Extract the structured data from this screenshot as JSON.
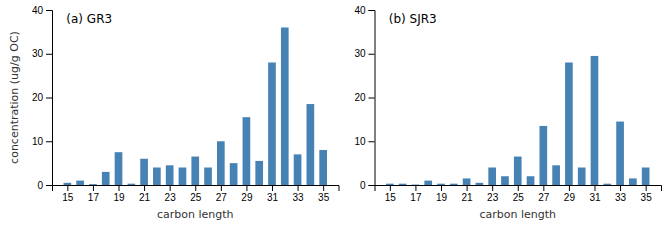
{
  "chart_data": [
    {
      "type": "bar",
      "title": "(a) GR3",
      "xlabel": "carbon length",
      "ylabel": "concentration (ug/g OC)",
      "x": [
        15,
        16,
        17,
        18,
        19,
        20,
        21,
        22,
        23,
        24,
        25,
        26,
        27,
        28,
        29,
        30,
        31,
        32,
        33,
        34,
        35
      ],
      "values": [
        0.5,
        1.0,
        0.2,
        3.0,
        7.5,
        0.3,
        6.0,
        4.0,
        4.5,
        4.0,
        6.5,
        4.0,
        10.0,
        5.0,
        15.5,
        5.5,
        28.0,
        36.0,
        7.0,
        18.5,
        8.0
      ],
      "xlim": [
        13.8,
        36.2
      ],
      "xticks": [
        15,
        17,
        19,
        21,
        23,
        25,
        27,
        29,
        31,
        33,
        35
      ],
      "ylim": [
        0,
        40
      ],
      "yticks": [
        0,
        10,
        20,
        30,
        40
      ],
      "grid": false
    },
    {
      "type": "bar",
      "title": "(b) SJR3",
      "xlabel": "carbon length",
      "x": [
        15,
        16,
        17,
        18,
        19,
        20,
        21,
        22,
        23,
        24,
        25,
        26,
        27,
        28,
        29,
        30,
        31,
        32,
        33,
        34,
        35
      ],
      "values": [
        0.3,
        0.3,
        0.1,
        1.0,
        0.3,
        0.3,
        1.5,
        0.5,
        4.0,
        2.0,
        6.5,
        2.0,
        13.5,
        4.5,
        28.0,
        4.0,
        29.5,
        0.3,
        14.5,
        1.5,
        4.0
      ],
      "xlim": [
        13.8,
        36.2
      ],
      "xticks": [
        15,
        17,
        19,
        21,
        23,
        25,
        27,
        29,
        31,
        33,
        35
      ],
      "ylim": [
        0,
        40
      ],
      "yticks": [
        0,
        10,
        20,
        30,
        40
      ],
      "grid": false
    }
  ]
}
